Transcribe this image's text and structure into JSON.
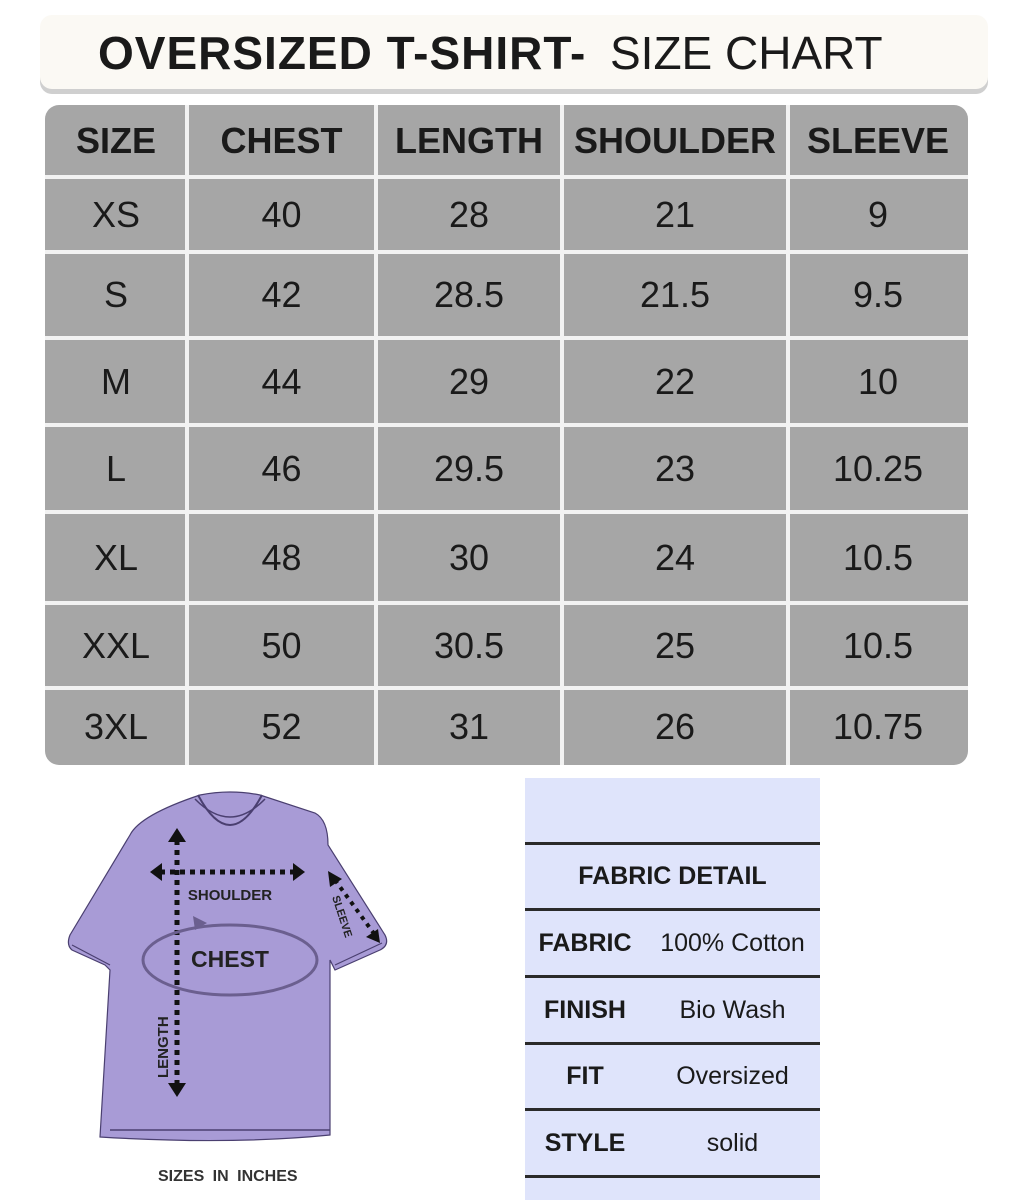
{
  "header": {
    "title_bold": "OVERSIZED T-SHIRT-",
    "title_light": "SIZE CHART"
  },
  "table": {
    "columns": [
      "SIZE",
      "CHEST",
      "LENGTH",
      "SHOULDER",
      "SLEEVE"
    ],
    "rows": [
      [
        "XS",
        "40",
        "28",
        "21",
        "9"
      ],
      [
        "S",
        "42",
        "28.5",
        "21.5",
        "9.5"
      ],
      [
        "M",
        "44",
        "29",
        "22",
        "10"
      ],
      [
        "L",
        "46",
        "29.5",
        "23",
        "10.25"
      ],
      [
        "XL",
        "48",
        "30",
        "24",
        "10.5"
      ],
      [
        "XXL",
        "50",
        "30.5",
        "25",
        "10.5"
      ],
      [
        "3XL",
        "52",
        "31",
        "26",
        "10.75"
      ]
    ]
  },
  "diagram": {
    "labels": {
      "shoulder": "SHOULDER",
      "chest": "CHEST",
      "sleeve": "SLEEVE",
      "length": "LENGTH"
    },
    "caption": "SIZES IN INCHES",
    "shirt_color": "#a89bd6"
  },
  "fabric": {
    "title": "FABRIC DETAIL",
    "rows": [
      {
        "label": "FABRIC",
        "value": "100% Cotton"
      },
      {
        "label": "FINISH",
        "value": "Bio Wash"
      },
      {
        "label": "FIT",
        "value": "Oversized"
      },
      {
        "label": "STYLE",
        "value": "solid"
      }
    ]
  }
}
